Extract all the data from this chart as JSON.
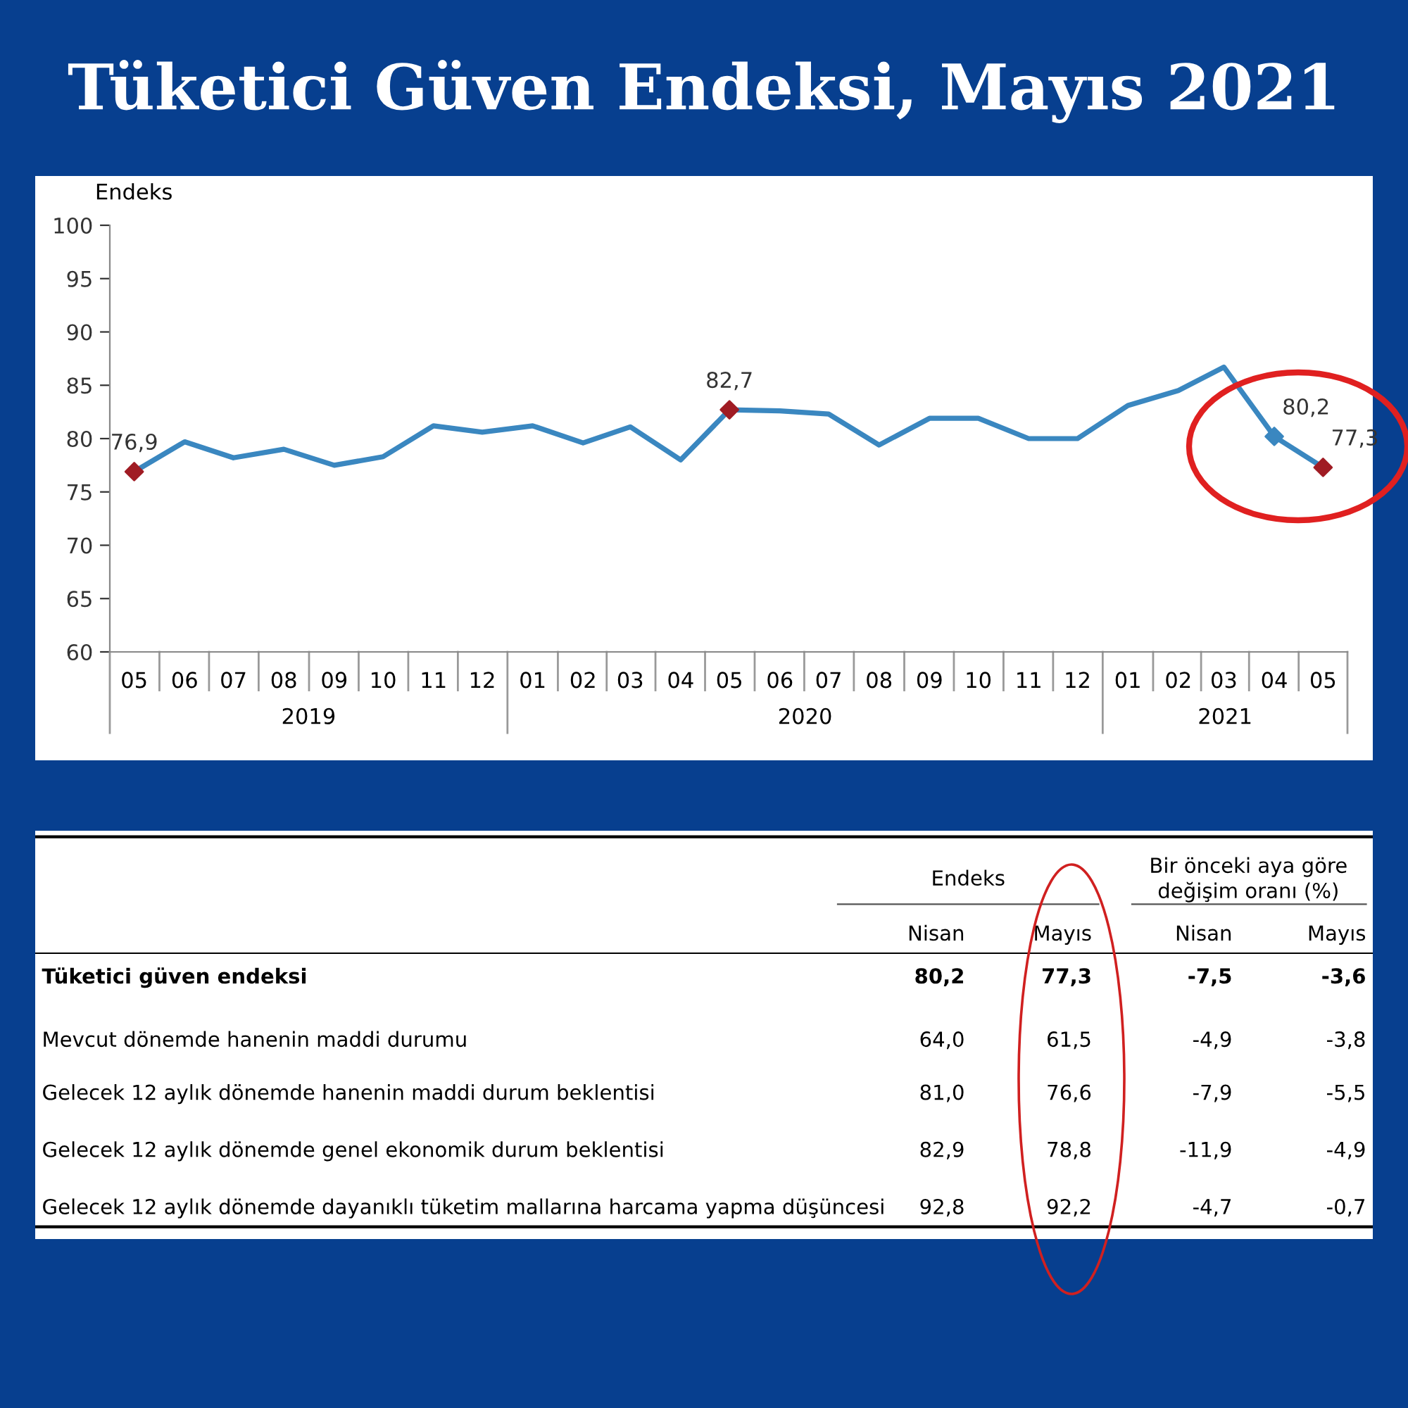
{
  "chart_data": [
    {
      "type": "line",
      "title": "Tüketici Güven Endeksi, Mayıs 2021",
      "ylabel": "Endeks",
      "x": [
        "2019-05",
        "2019-06",
        "2019-07",
        "2019-08",
        "2019-09",
        "2019-10",
        "2019-11",
        "2019-12",
        "2020-01",
        "2020-02",
        "2020-03",
        "2020-04",
        "2020-05",
        "2020-06",
        "2020-07",
        "2020-08",
        "2020-09",
        "2020-10",
        "2020-11",
        "2020-12",
        "2021-01",
        "2021-02",
        "2021-03",
        "2021-04",
        "2021-05"
      ],
      "xlim": [
        "2019-04-16",
        "2021-05-16"
      ],
      "xticks": [
        {
          "value": "2019-05",
          "label": "05"
        },
        {
          "value": "2019-06",
          "label": "06"
        },
        {
          "value": "2019-07",
          "label": "07"
        },
        {
          "value": "2019-08",
          "label": "08"
        },
        {
          "value": "2019-09",
          "label": "09"
        },
        {
          "value": "2019-10",
          "label": "10"
        },
        {
          "value": "2019-11",
          "label": "11"
        },
        {
          "value": "2019-12",
          "label": "12"
        },
        {
          "value": "2020-01",
          "label": "01"
        },
        {
          "value": "2020-02",
          "label": "02"
        },
        {
          "value": "2020-03",
          "label": "03"
        },
        {
          "value": "2020-04",
          "label": "04"
        },
        {
          "value": "2020-05",
          "label": "05"
        },
        {
          "value": "2020-06",
          "label": "06"
        },
        {
          "value": "2020-07",
          "label": "07"
        },
        {
          "value": "2020-08",
          "label": "08"
        },
        {
          "value": "2020-09",
          "label": "09"
        },
        {
          "value": "2020-10",
          "label": "10"
        },
        {
          "value": "2020-11",
          "label": "11"
        },
        {
          "value": "2020-12",
          "label": "12"
        },
        {
          "value": "2021-01",
          "label": "01"
        },
        {
          "value": "2021-02",
          "label": "02"
        },
        {
          "value": "2021-03",
          "label": "03"
        },
        {
          "value": "2021-04",
          "label": "04"
        },
        {
          "value": "2021-05",
          "label": "05"
        }
      ],
      "ylim": [
        60,
        100
      ],
      "yticks": [
        60,
        65,
        70,
        75,
        80,
        85,
        90,
        95,
        100
      ],
      "grid": false,
      "legend": false,
      "series": [
        {
          "type": "line",
          "color": "#3a87c0",
          "values": [
            76.9,
            79.7,
            78.2,
            79.0,
            77.5,
            78.3,
            81.2,
            80.6,
            81.2,
            79.6,
            81.1,
            78.0,
            82.7,
            82.6,
            82.3,
            79.4,
            81.9,
            81.9,
            80.0,
            80.0,
            83.1,
            84.5,
            86.7,
            80.2,
            77.3
          ]
        },
        {
          "type": "scatter",
          "marker": "diamond",
          "colors": [
            "#a01c24",
            null,
            null,
            null,
            null,
            null,
            null,
            null,
            null,
            null,
            null,
            null,
            "#a01c24",
            null,
            null,
            null,
            null,
            null,
            null,
            null,
            null,
            null,
            null,
            "#3a87c0",
            "#a01c24"
          ],
          "values": [
            76.9,
            null,
            null,
            null,
            null,
            null,
            null,
            null,
            null,
            null,
            null,
            null,
            82.7,
            null,
            null,
            null,
            null,
            null,
            null,
            null,
            null,
            null,
            null,
            80.2,
            77.3
          ],
          "value_labels": [
            "76,9",
            null,
            null,
            null,
            null,
            null,
            null,
            null,
            null,
            null,
            null,
            null,
            "82,7",
            null,
            null,
            null,
            null,
            null,
            null,
            null,
            null,
            null,
            null,
            "80,2",
            "77,3"
          ]
        }
      ],
      "annotations": [
        "2019",
        "2020",
        "2021"
      ]
    },
    {
      "type": "other",
      "categories": [
        "Tüketici güven endeksi",
        "Mevcut dönemde hanenin maddi durumu",
        "Gelecek 12 aylık dönemde hanenin maddi durum beklentisi",
        "Gelecek 12 aylık dönemde genel ekonomik durum beklentisi",
        "Gelecek 12 aylık dönemde dayanıklı tüketim mallarına harcama yapma düşüncesi"
      ],
      "series": [
        {
          "name": "Nisan",
          "values": [
            80.2,
            64.0,
            81.0,
            82.9,
            92.8
          ],
          "value_labels": [
            "80,2",
            "64,0",
            "81,0",
            "82,9",
            "92,8"
          ]
        },
        {
          "name": "Mayıs",
          "values": [
            77.3,
            61.5,
            76.6,
            78.8,
            92.2
          ],
          "value_labels": [
            "77,3",
            "61,5",
            "76,6",
            "78,8",
            "92,2"
          ]
        },
        {
          "name": "Nisan",
          "values": [
            -7.5,
            -4.9,
            -7.9,
            -11.9,
            -4.7
          ],
          "value_labels": [
            "-7,5",
            "-4,9",
            "-7,9",
            "-11,9",
            "-4,7"
          ]
        },
        {
          "name": "Mayıs",
          "values": [
            -3.6,
            -3.8,
            -5.5,
            -4.9,
            -0.7
          ],
          "value_labels": [
            "-3,6",
            "-3,8",
            "-5,5",
            "-4,9",
            "-0,7"
          ]
        }
      ],
      "annotations": [
        "Endeks",
        "Bir önceki aya göre değişim oranı (%)"
      ]
    }
  ]
}
